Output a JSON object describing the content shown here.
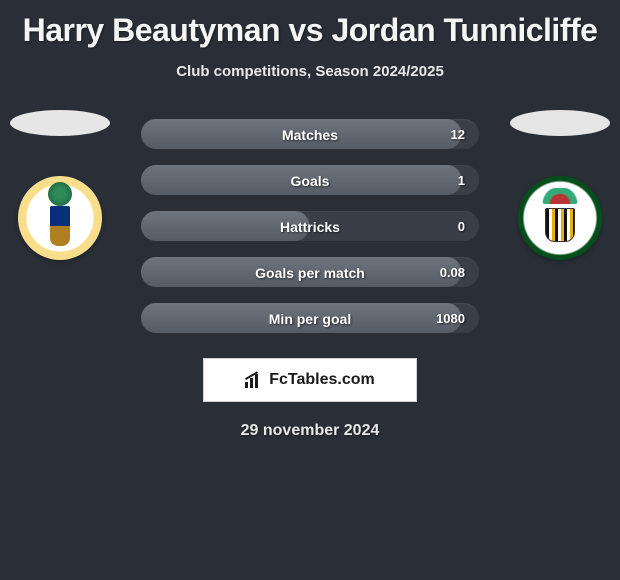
{
  "title": "Harry Beautyman vs Jordan Tunnicliffe",
  "subtitle": "Club competitions, Season 2024/2025",
  "date": "29 november 2024",
  "brand": {
    "name": "FcTables.com"
  },
  "colors": {
    "background": "#2a2f37",
    "row_bg": "#3a3f47",
    "fill_top": "#6d747e",
    "fill_bottom": "#565c66",
    "text": "#ffffff"
  },
  "players": {
    "left": {
      "club_logo": "sutton",
      "club_name": "Sutton United"
    },
    "right": {
      "club_logo": "solihull",
      "club_name": "Solihull Moors"
    }
  },
  "stats": [
    {
      "label": "Matches",
      "value": "12",
      "fill_pct": 95
    },
    {
      "label": "Goals",
      "value": "1",
      "fill_pct": 95
    },
    {
      "label": "Hattricks",
      "value": "0",
      "fill_pct": 50
    },
    {
      "label": "Goals per match",
      "value": "0.08",
      "fill_pct": 95
    },
    {
      "label": "Min per goal",
      "value": "1080",
      "fill_pct": 95
    }
  ]
}
